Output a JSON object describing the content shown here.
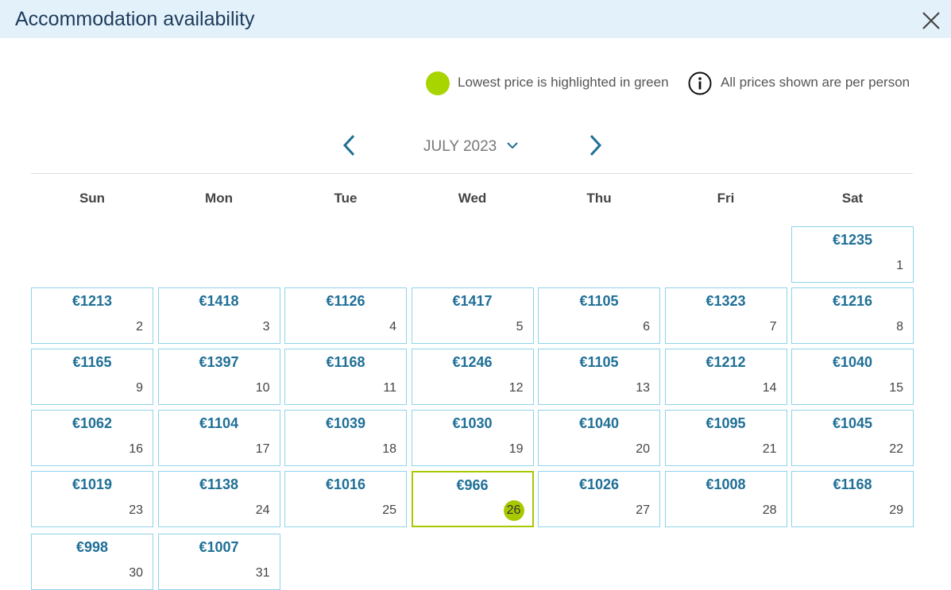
{
  "header": {
    "title": "Accommodation availability"
  },
  "legend": {
    "lowest": "Lowest price is highlighted in green",
    "info": "All prices shown are per person"
  },
  "calendar": {
    "month": "JULY 2023",
    "weekdays": [
      "Sun",
      "Mon",
      "Tue",
      "Wed",
      "Thu",
      "Fri",
      "Sat"
    ],
    "weeks": [
      [
        null,
        null,
        null,
        null,
        null,
        null,
        {
          "price": "€1235",
          "day": 1
        }
      ],
      [
        {
          "price": "€1213",
          "day": 2
        },
        {
          "price": "€1418",
          "day": 3
        },
        {
          "price": "€1126",
          "day": 4
        },
        {
          "price": "€1417",
          "day": 5
        },
        {
          "price": "€1105",
          "day": 6
        },
        {
          "price": "€1323",
          "day": 7
        },
        {
          "price": "€1216",
          "day": 8
        }
      ],
      [
        {
          "price": "€1165",
          "day": 9
        },
        {
          "price": "€1397",
          "day": 10
        },
        {
          "price": "€1168",
          "day": 11
        },
        {
          "price": "€1246",
          "day": 12
        },
        {
          "price": "€1105",
          "day": 13
        },
        {
          "price": "€1212",
          "day": 14
        },
        {
          "price": "€1040",
          "day": 15
        }
      ],
      [
        {
          "price": "€1062",
          "day": 16
        },
        {
          "price": "€1104",
          "day": 17
        },
        {
          "price": "€1039",
          "day": 18
        },
        {
          "price": "€1030",
          "day": 19
        },
        {
          "price": "€1040",
          "day": 20
        },
        {
          "price": "€1095",
          "day": 21
        },
        {
          "price": "€1045",
          "day": 22
        }
      ],
      [
        {
          "price": "€1019",
          "day": 23
        },
        {
          "price": "€1138",
          "day": 24
        },
        {
          "price": "€1016",
          "day": 25
        },
        {
          "price": "€966",
          "day": 26,
          "lowest": true
        },
        {
          "price": "€1026",
          "day": 27
        },
        {
          "price": "€1008",
          "day": 28
        },
        {
          "price": "€1168",
          "day": 29
        }
      ],
      [
        {
          "price": "€998",
          "day": 30
        },
        {
          "price": "€1007",
          "day": 31
        }
      ]
    ]
  }
}
